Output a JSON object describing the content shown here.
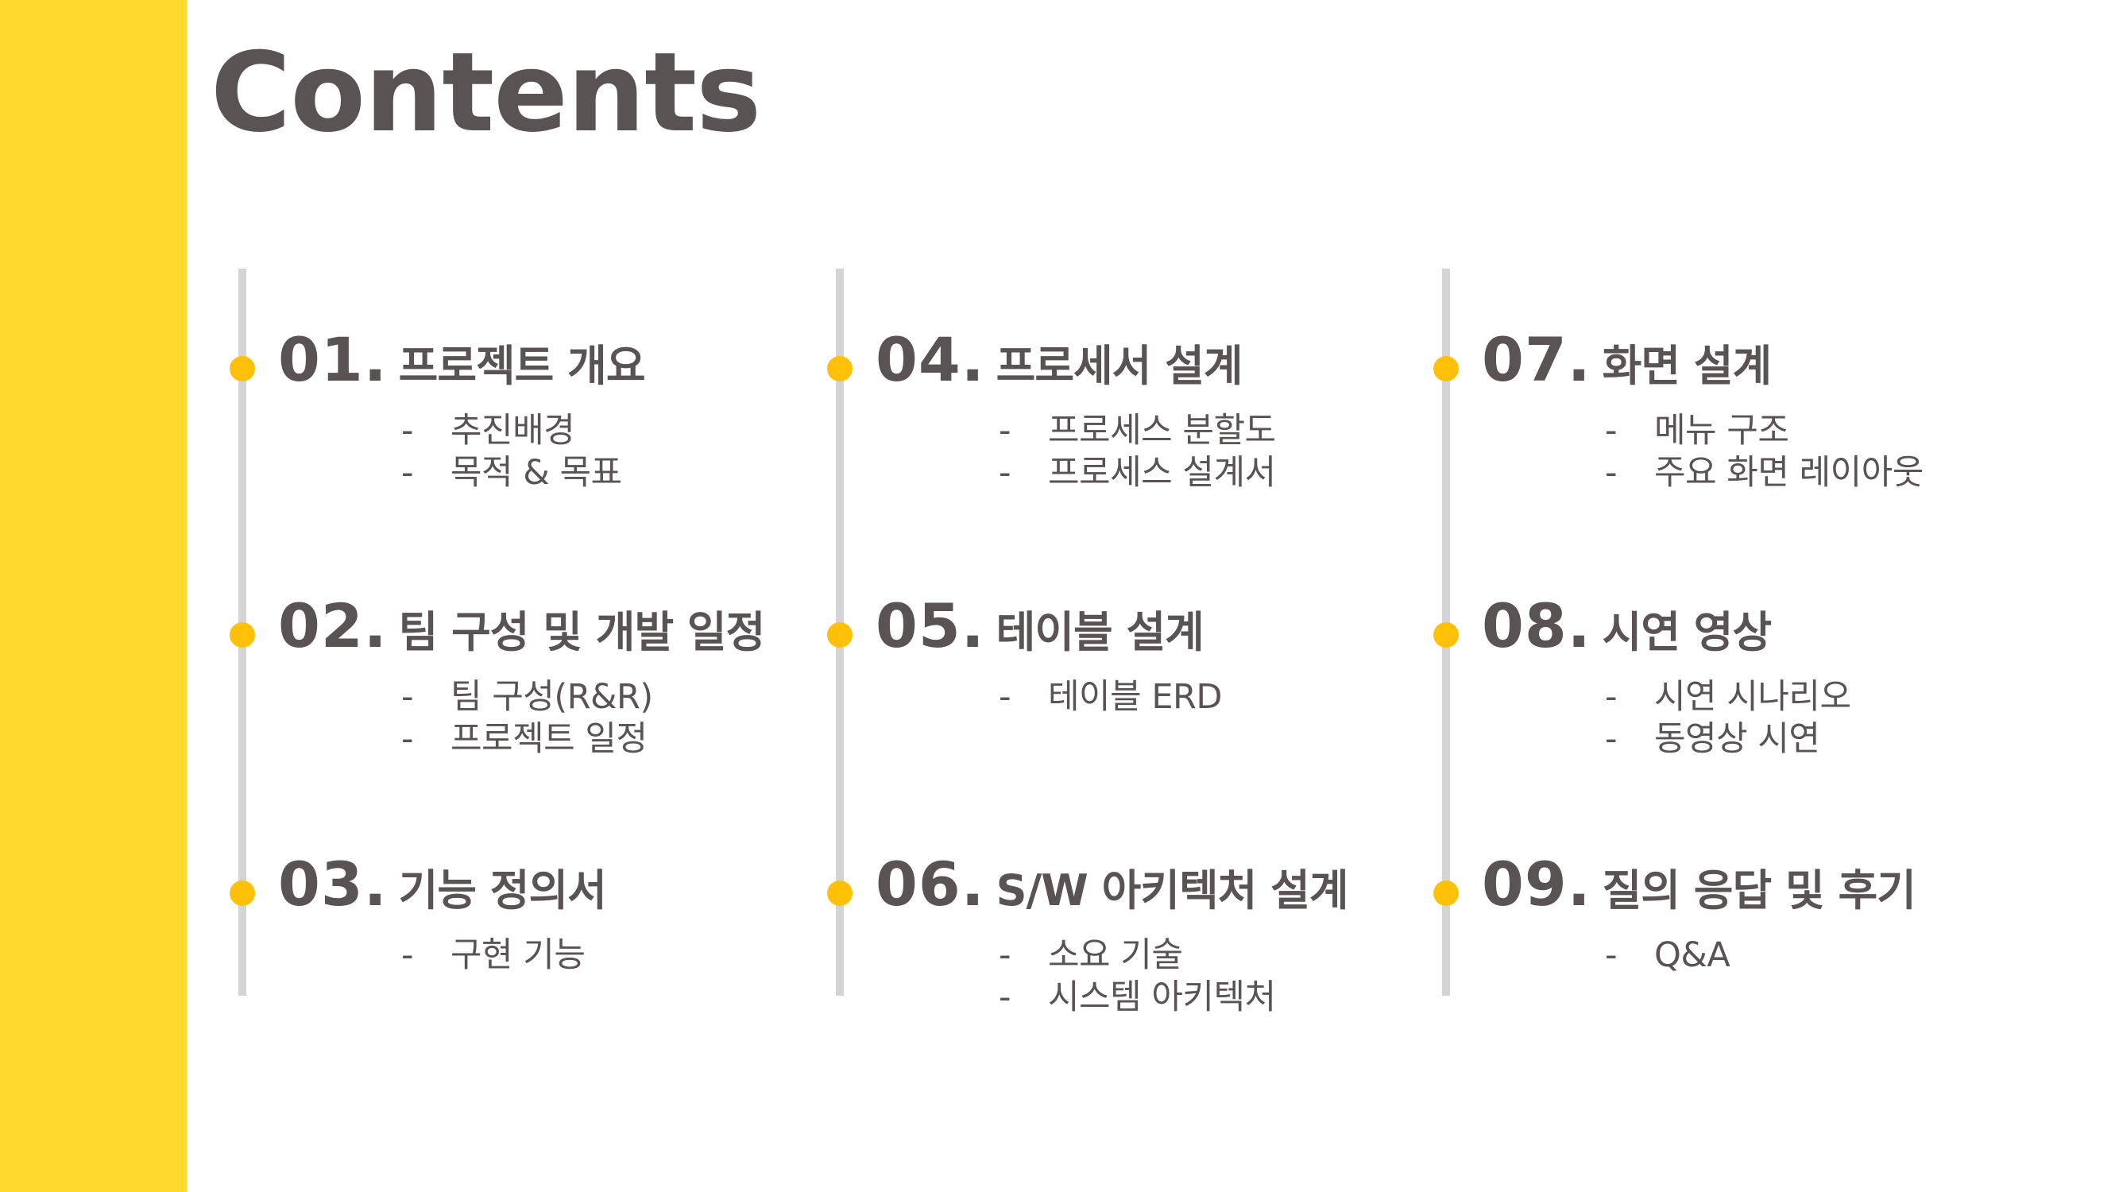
{
  "title": "Contents",
  "columns": [
    {
      "sections": [
        {
          "num": "01.",
          "title": "프로젝트 개요",
          "items": [
            "추진배경",
            "목적 & 목표"
          ]
        },
        {
          "num": "02.",
          "title": "팀 구성 및 개발 일정",
          "items": [
            "팀 구성(R&R)",
            "프로젝트 일정"
          ]
        },
        {
          "num": "03.",
          "title": "기능 정의서",
          "items": [
            "구현 기능"
          ]
        }
      ]
    },
    {
      "sections": [
        {
          "num": "04.",
          "title": "프로세서 설계",
          "items": [
            "프로세스 분할도",
            "프로세스 설계서"
          ]
        },
        {
          "num": "05.",
          "title": "테이블 설계",
          "items": [
            "테이블 ERD"
          ]
        },
        {
          "num": "06.",
          "title": "S/W 아키텍처 설계",
          "items": [
            "소요 기술",
            "시스템 아키텍처"
          ]
        }
      ]
    },
    {
      "sections": [
        {
          "num": "07.",
          "title": "화면 설계",
          "items": [
            "메뉴 구조",
            "주요 화면 레이아웃"
          ]
        },
        {
          "num": "08.",
          "title": "시연 영상",
          "items": [
            "시연 시나리오",
            "동영상 시연"
          ]
        },
        {
          "num": "09.",
          "title": "질의 응답 및 후기",
          "items": [
            "Q&A"
          ]
        }
      ]
    }
  ],
  "dash": "-",
  "colors": {
    "accent_bar": "#FFD92E",
    "dot": "#FFC107",
    "timeline": "#D4D4D4",
    "text": "#595353"
  }
}
